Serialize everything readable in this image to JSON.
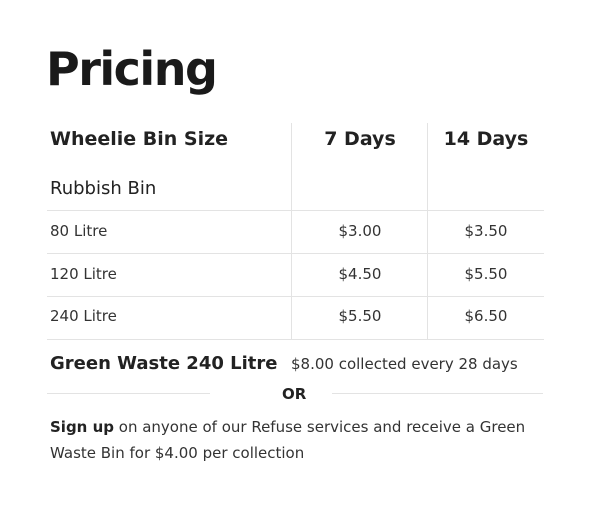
{
  "title": "Pricing",
  "table": {
    "headers": [
      "Wheelie Bin Size",
      "7 Days",
      "14 Days"
    ],
    "section": "Rubbish Bin",
    "rows": [
      {
        "size": "80 Litre",
        "d7": "$3.00",
        "d14": "$3.50"
      },
      {
        "size": "120 Litre",
        "d7": "$4.50",
        "d14": "$5.50"
      },
      {
        "size": "240 Litre",
        "d7": "$5.50",
        "d14": "$6.50"
      }
    ]
  },
  "green_waste": {
    "label": "Green Waste 240 Litre",
    "price": "$8.00 collected every 28 days"
  },
  "or": "OR",
  "signup": {
    "bold": "Sign up",
    "text": " on anyone of our Refuse services and receive a Green Waste Bin for $4.00 per collection"
  }
}
